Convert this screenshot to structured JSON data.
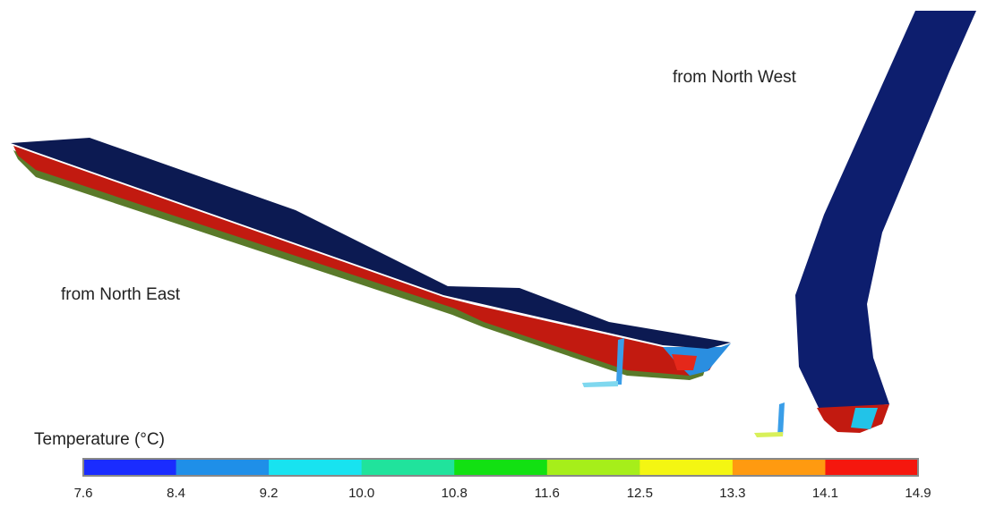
{
  "views": [
    {
      "label": "from North East"
    },
    {
      "label": "from North West"
    }
  ],
  "colorbar": {
    "title": "Temperature (°C)",
    "ticks": [
      "7.6",
      "8.4",
      "9.2",
      "10.0",
      "10.8",
      "11.6",
      "12.5",
      "13.3",
      "14.1",
      "14.9"
    ],
    "colors": [
      "#1a2cff",
      "#1f8fe8",
      "#18e3f0",
      "#20e39c",
      "#12e012",
      "#a6ee1a",
      "#f4f612",
      "#ff9a10",
      "#f5170e"
    ]
  }
}
